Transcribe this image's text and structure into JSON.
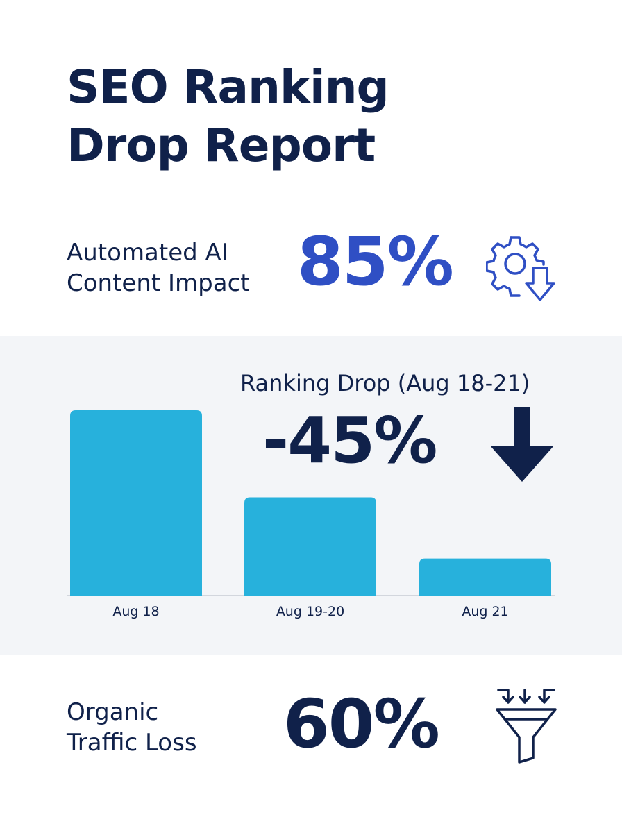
{
  "header": {
    "title_line1": "SEO Ranking",
    "title_line2": "Drop Report"
  },
  "ai_impact": {
    "label_line1": "Automated AI",
    "label_line2": "Content Impact",
    "value": "85%",
    "icon": "gear-with-down-arrow-icon"
  },
  "ranking": {
    "subtitle": "Ranking Drop (Aug 18-21)",
    "value": "-45%",
    "icon": "down-arrow-icon"
  },
  "traffic": {
    "label_line1": "Organic",
    "label_line2": "Traffic Loss",
    "value": "60%",
    "icon": "funnel-icon"
  },
  "colors": {
    "navy": "#10214a",
    "accent_blue": "#2f4fc4",
    "bar": "#27b1dc",
    "panel": "#f3f5f8"
  },
  "chart_data": {
    "type": "bar",
    "categories": [
      "Aug 18",
      "Aug 19-20",
      "Aug 21"
    ],
    "values": [
      100,
      53,
      20
    ],
    "title": "",
    "xlabel": "",
    "ylabel": "",
    "ylim": [
      0,
      100
    ],
    "grid": false
  }
}
